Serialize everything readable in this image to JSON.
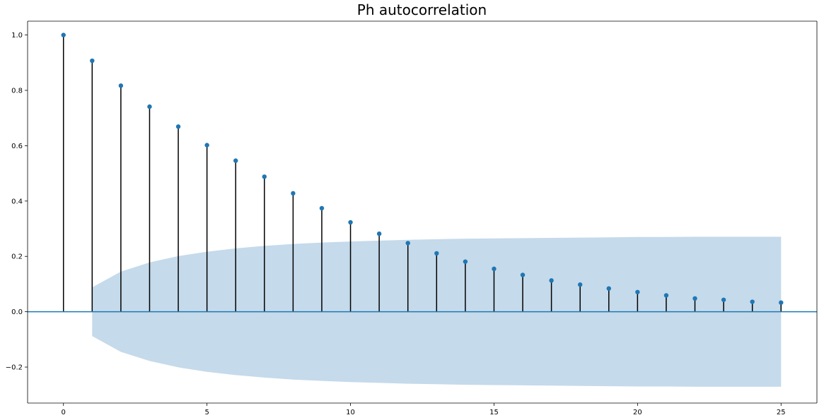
{
  "chart_data": {
    "type": "stem",
    "title": "Ph autocorrelation",
    "xlabel": "",
    "ylabel": "",
    "xlim": [
      -1.25,
      26.25
    ],
    "ylim": [
      -0.33,
      1.05
    ],
    "x_ticks": [
      0,
      5,
      10,
      15,
      20,
      25
    ],
    "y_ticks": [
      -0.2,
      0.0,
      0.2,
      0.4,
      0.6,
      0.8,
      1.0
    ],
    "y_tick_labels": [
      "−0.2",
      "0.0",
      "0.2",
      "0.4",
      "0.6",
      "0.8",
      "1.0"
    ],
    "lags": [
      0,
      1,
      2,
      3,
      4,
      5,
      6,
      7,
      8,
      9,
      10,
      11,
      12,
      13,
      14,
      15,
      16,
      17,
      18,
      19,
      20,
      21,
      22,
      23,
      24,
      25
    ],
    "values": [
      1.0,
      0.907,
      0.817,
      0.741,
      0.669,
      0.602,
      0.546,
      0.488,
      0.428,
      0.374,
      0.323,
      0.282,
      0.248,
      0.211,
      0.181,
      0.155,
      0.133,
      0.113,
      0.098,
      0.084,
      0.071,
      0.059,
      0.048,
      0.043,
      0.036,
      0.033
    ],
    "confidence_band": [
      0,
      0.088,
      0.145,
      0.178,
      0.201,
      0.217,
      0.229,
      0.238,
      0.245,
      0.25,
      0.254,
      0.257,
      0.26,
      0.262,
      0.264,
      0.265,
      0.266,
      0.267,
      0.268,
      0.269,
      0.27,
      0.27,
      0.271,
      0.271,
      0.271,
      0.271
    ],
    "colors": {
      "marker": "#1f77b4",
      "baseline": "#1f77b4",
      "band": "#c5daeb",
      "stem": "#000000"
    }
  }
}
